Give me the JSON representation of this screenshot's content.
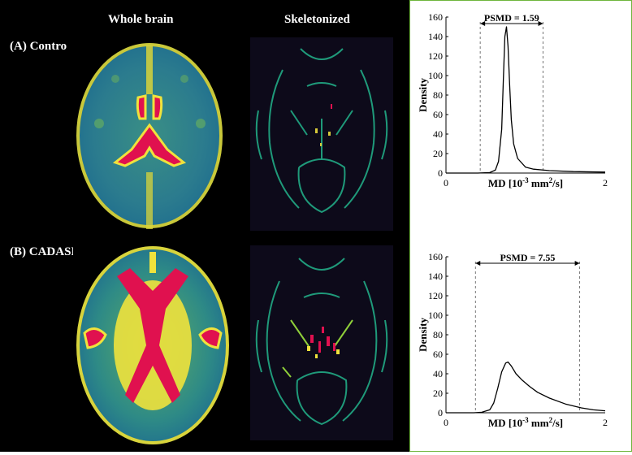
{
  "headings": {
    "whole_brain": "Whole brain",
    "skeletonized": "Skeletonized"
  },
  "rows": [
    {
      "label": "(A) Control"
    },
    {
      "label": "(B) CADASIL"
    }
  ],
  "colors": {
    "panel_border": "#6fb63d",
    "map_low": "#1e6f8a",
    "map_mid": "#5aa86a",
    "map_high": "#f0e23c",
    "map_peak": "#e0114f"
  },
  "chart_data": [
    {
      "type": "line",
      "panel": "A",
      "annotation": "PSMD = 1.59",
      "xlim": [
        0,
        2
      ],
      "ylim": [
        0,
        160
      ],
      "x_ticks": [
        "0",
        "2"
      ],
      "y_ticks": [
        "0",
        "20",
        "40",
        "60",
        "80",
        "100",
        "120",
        "140",
        "160"
      ],
      "ylabel": "Density",
      "xlabel": "MD [10",
      "xlabel_exp1": "-3",
      "xlabel_mid": " mm",
      "xlabel_exp2": "2",
      "xlabel_end": "/s]",
      "psmd_range": [
        0.43,
        1.22
      ],
      "x": [
        0.0,
        0.4,
        0.55,
        0.62,
        0.66,
        0.7,
        0.72,
        0.74,
        0.76,
        0.78,
        0.8,
        0.82,
        0.85,
        0.9,
        1.0,
        1.1,
        1.3,
        1.6,
        2.0
      ],
      "y": [
        0,
        0,
        0.5,
        3,
        12,
        45,
        95,
        140,
        150,
        130,
        90,
        55,
        30,
        15,
        6,
        4,
        2.5,
        1.5,
        1
      ]
    },
    {
      "type": "line",
      "panel": "B",
      "annotation": "PSMD = 7.55",
      "xlim": [
        0,
        2
      ],
      "ylim": [
        0,
        160
      ],
      "x_ticks": [
        "0",
        "2"
      ],
      "y_ticks": [
        "0",
        "20",
        "40",
        "60",
        "80",
        "100",
        "120",
        "140",
        "160"
      ],
      "ylabel": "Density",
      "xlabel": "MD [10",
      "xlabel_exp1": "-3",
      "xlabel_mid": " mm",
      "xlabel_exp2": "2",
      "xlabel_end": "/s]",
      "psmd_range": [
        0.37,
        1.68
      ],
      "x": [
        0.0,
        0.35,
        0.45,
        0.55,
        0.6,
        0.65,
        0.7,
        0.75,
        0.78,
        0.82,
        0.88,
        0.95,
        1.05,
        1.15,
        1.3,
        1.5,
        1.7,
        1.85,
        2.0
      ],
      "y": [
        0,
        0,
        0.5,
        3,
        10,
        25,
        42,
        51,
        52,
        48,
        40,
        34,
        27,
        21,
        15,
        9,
        5,
        3,
        2
      ]
    }
  ]
}
